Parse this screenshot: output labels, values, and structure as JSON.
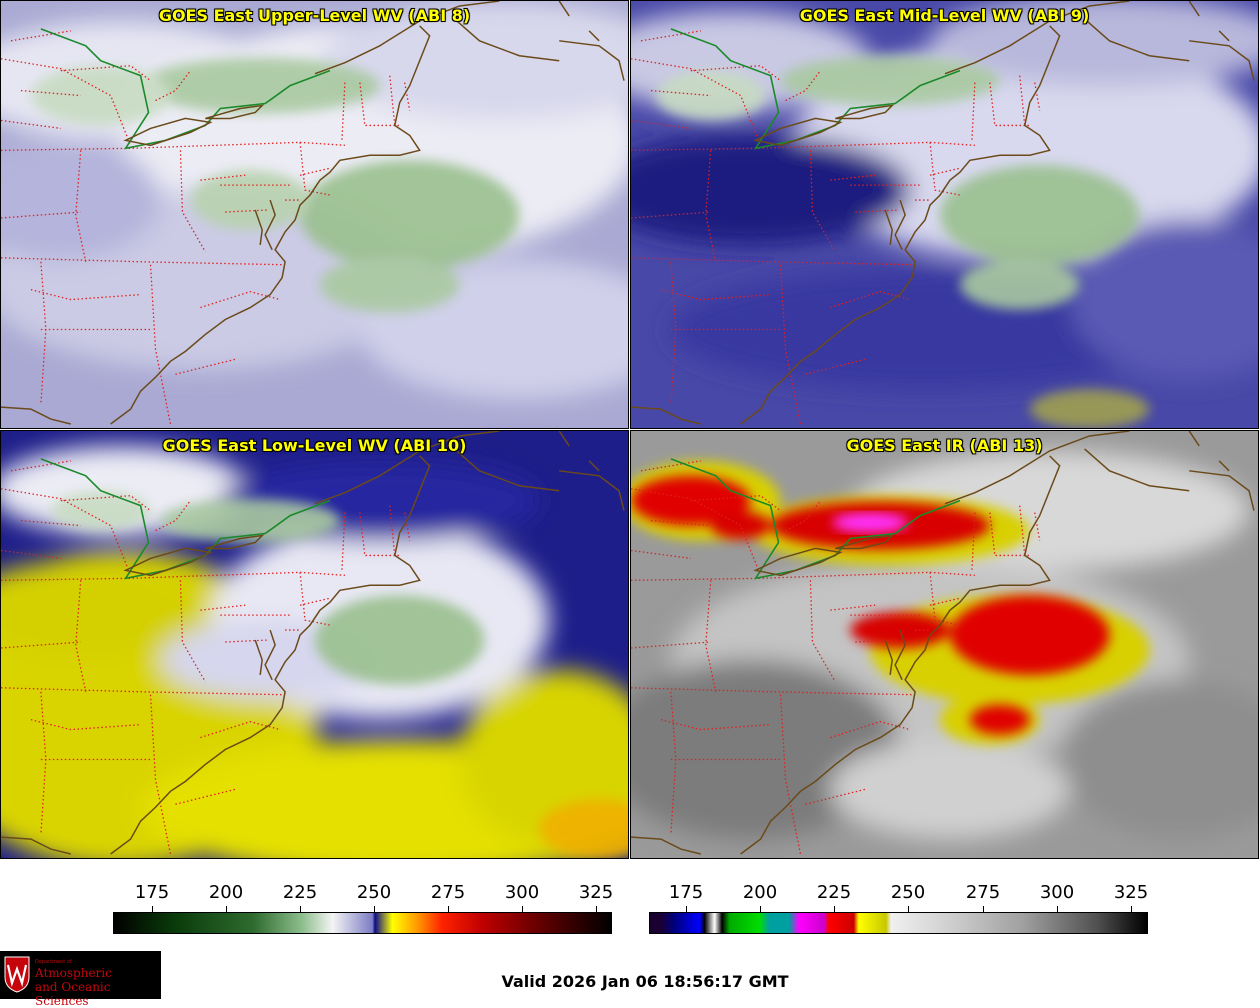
{
  "panels": [
    {
      "title": "GOES East Upper-Level WV (ABI 8)"
    },
    {
      "title": "GOES East Mid-Level WV (ABI 9)"
    },
    {
      "title": "GOES East Low-Level WV (ABI 10)"
    },
    {
      "title": "GOES East IR (ABI 13)"
    }
  ],
  "colorbar_wv": {
    "ticks": [
      "175",
      "200",
      "225",
      "250",
      "275",
      "300",
      "325"
    ]
  },
  "colorbar_ir": {
    "ticks": [
      "175",
      "200",
      "225",
      "250",
      "275",
      "300",
      "325"
    ]
  },
  "logo": {
    "dept": "Department of",
    "line1": "Atmospheric",
    "line2": "and Oceanic Sciences"
  },
  "valid_time": "Valid 2026 Jan 06 18:56:17 GMT",
  "colors": {
    "title_text": "#ffff00",
    "state_borders": "#e02020",
    "coastline": "#6b4a1a",
    "canada_border": "#1a8a2a",
    "logo_red": "#c5050c"
  }
}
